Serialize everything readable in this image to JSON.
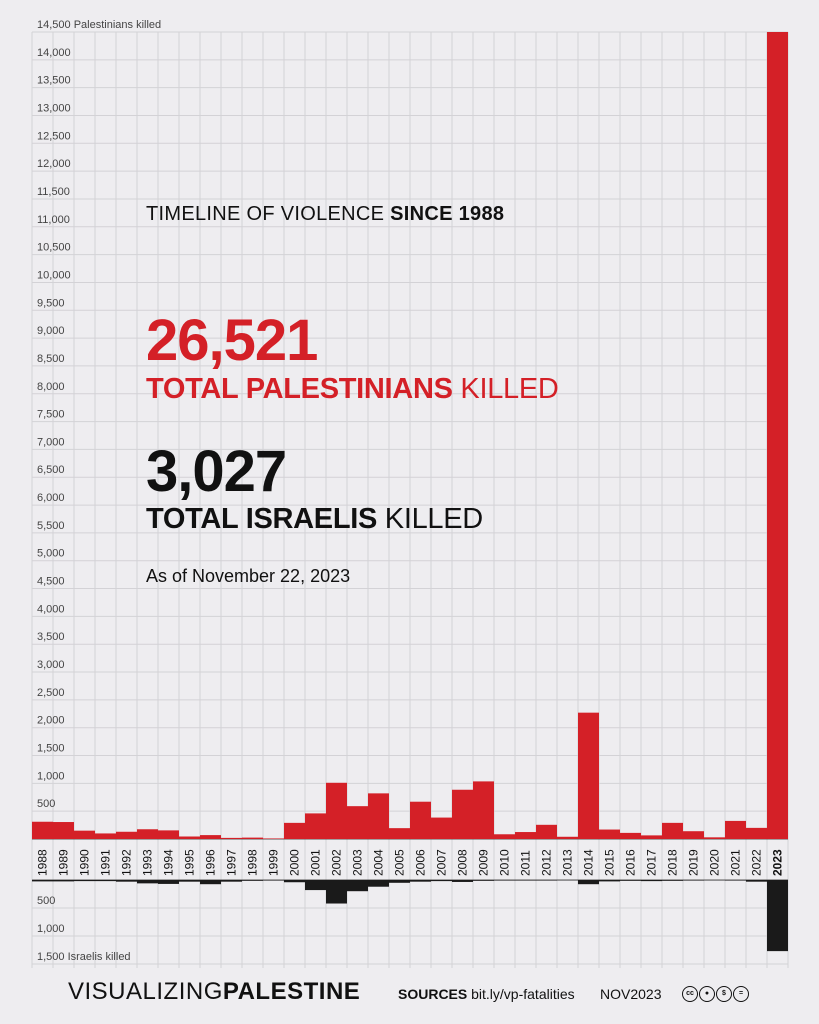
{
  "heading": {
    "normal": "TIMELINE OF VIOLENCE ",
    "bold": "SINCE 1988"
  },
  "palestinians": {
    "total": "26,521",
    "label_bold": "TOTAL PALESTINIANS",
    "label_normal": " KILLED"
  },
  "israelis": {
    "total": "3,027",
    "label_bold": "TOTAL ISRAELIS",
    "label_normal": " KILLED"
  },
  "as_of": "As of November 22, 2023",
  "footer": {
    "brand_light": "VISUALIZING",
    "brand_bold": "PALESTINE",
    "sources_bold": "SOURCES",
    "sources_link": " bit.ly/vp-fatalities",
    "date": "NOV2023",
    "license_icons": [
      "cc-icon",
      "by-icon",
      "nc-icon",
      "nd-icon"
    ]
  },
  "colors": {
    "palestinian": "#d42027",
    "israeli": "#1a1a1a",
    "background": "#eeedf0",
    "grid": "#d3d2d6"
  },
  "chart_data": {
    "type": "bar",
    "categories": [
      "1988",
      "1989",
      "1990",
      "1991",
      "1992",
      "1993",
      "1994",
      "1995",
      "1996",
      "1997",
      "1998",
      "1999",
      "2000",
      "2001",
      "2002",
      "2003",
      "2004",
      "2005",
      "2006",
      "2007",
      "2008",
      "2009",
      "2010",
      "2011",
      "2012",
      "2013",
      "2014",
      "2015",
      "2016",
      "2017",
      "2018",
      "2019",
      "2020",
      "2021",
      "2022",
      "2023"
    ],
    "top_axis": {
      "ylim": [
        0,
        14500
      ],
      "top_label": "14,500 Palestinians killed",
      "ticks": [
        {
          "v": 500,
          "t": "500"
        },
        {
          "v": 1000,
          "t": "1,000"
        },
        {
          "v": 1500,
          "t": "1,500"
        },
        {
          "v": 2000,
          "t": "2,000"
        },
        {
          "v": 2500,
          "t": "2,500"
        },
        {
          "v": 3000,
          "t": "3,000"
        },
        {
          "v": 3500,
          "t": "3,500"
        },
        {
          "v": 4000,
          "t": "4,000"
        },
        {
          "v": 4500,
          "t": "4,500"
        },
        {
          "v": 5000,
          "t": "5,000"
        },
        {
          "v": 5500,
          "t": "5,500"
        },
        {
          "v": 6000,
          "t": "6,000"
        },
        {
          "v": 6500,
          "t": "6,500"
        },
        {
          "v": 7000,
          "t": "7,000"
        },
        {
          "v": 7500,
          "t": "7,500"
        },
        {
          "v": 8000,
          "t": "8,000"
        },
        {
          "v": 8500,
          "t": "8,500"
        },
        {
          "v": 9000,
          "t": "9,000"
        },
        {
          "v": 9500,
          "t": "9,500"
        },
        {
          "v": 10000,
          "t": "10,000"
        },
        {
          "v": 10500,
          "t": "10,500"
        },
        {
          "v": 11000,
          "t": "11,000"
        },
        {
          "v": 11500,
          "t": "11,500"
        },
        {
          "v": 12000,
          "t": "12,000"
        },
        {
          "v": 12500,
          "t": "12,500"
        },
        {
          "v": 13000,
          "t": "13,000"
        },
        {
          "v": 13500,
          "t": "13,500"
        },
        {
          "v": 14000,
          "t": "14,000"
        }
      ]
    },
    "bottom_axis": {
      "ylim": [
        0,
        1500
      ],
      "bottom_label": "1,500 Israelis killed",
      "ticks": [
        {
          "v": 500,
          "t": "500"
        },
        {
          "v": 1000,
          "t": "1,000"
        }
      ]
    },
    "series": [
      {
        "name": "Palestinians killed",
        "values": [
          310,
          305,
          150,
          100,
          130,
          175,
          155,
          45,
          70,
          20,
          25,
          10,
          290,
          460,
          1010,
          590,
          820,
          195,
          670,
          385,
          885,
          1035,
          85,
          125,
          255,
          40,
          2270,
          170,
          110,
          65,
          290,
          140,
          30,
          325,
          200,
          14500
        ]
      },
      {
        "name": "Israelis killed",
        "values": [
          25,
          25,
          20,
          20,
          30,
          60,
          70,
          30,
          75,
          30,
          15,
          10,
          40,
          180,
          420,
          200,
          120,
          50,
          30,
          20,
          35,
          15,
          10,
          10,
          10,
          5,
          75,
          25,
          15,
          20,
          15,
          10,
          5,
          10,
          30,
          1270
        ]
      }
    ],
    "grid": true
  }
}
